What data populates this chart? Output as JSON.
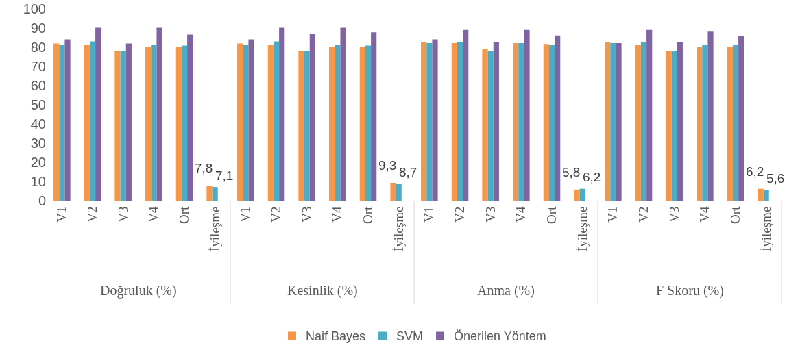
{
  "chart_data": {
    "type": "bar",
    "categories": [
      "V1",
      "V2",
      "V3",
      "V4",
      "Ort",
      "İyileşme",
      "V1",
      "V2",
      "V3",
      "V4",
      "Ort",
      "İyileşme",
      "V1",
      "V2",
      "V3",
      "V4",
      "Ort",
      "İyileşme",
      "V1",
      "V2",
      "V3",
      "V4",
      "Ort",
      "İyileşme"
    ],
    "annotations": [
      "Doğruluk (%)",
      "Kesinlik (%)",
      "Anma (%)",
      "F Skoru (%)"
    ],
    "series": [
      {
        "name": "Naif Bayes",
        "color": "#f79646",
        "values": [
          82,
          81.2,
          78.1,
          80.1,
          80.4,
          7.8,
          82,
          81.2,
          78.1,
          80.1,
          80.4,
          9.3,
          82.9,
          82.1,
          79.3,
          82.1,
          81.7,
          5.8,
          82.9,
          81.2,
          78.1,
          80.1,
          80.4,
          6.2
        ],
        "value_labels": [
          null,
          null,
          null,
          null,
          null,
          "7,8",
          null,
          null,
          null,
          null,
          null,
          "9,3",
          null,
          null,
          null,
          null,
          null,
          "5,8",
          null,
          null,
          null,
          null,
          null,
          "6,2"
        ]
      },
      {
        "name": "SVM",
        "color": "#4bacc6",
        "values": [
          81.2,
          83,
          78.1,
          81.2,
          80.9,
          7.1,
          81.2,
          83,
          78.1,
          81.2,
          80.9,
          8.7,
          82.1,
          82.9,
          78.1,
          82.1,
          81.2,
          6.2,
          82.1,
          82.9,
          78.1,
          81.2,
          81.2,
          5.6
        ],
        "value_labels": [
          null,
          null,
          null,
          null,
          null,
          "7,1",
          null,
          null,
          null,
          null,
          null,
          "8,7",
          null,
          null,
          null,
          null,
          null,
          "6,2",
          null,
          null,
          null,
          null,
          null,
          "5,6"
        ]
      },
      {
        "name": "Önerilen Yöntem",
        "color": "#8064a2",
        "values": [
          84.1,
          90.2,
          82,
          90.2,
          86.6,
          null,
          84.1,
          90.2,
          87,
          90.2,
          87.8,
          null,
          84.1,
          89,
          82.9,
          89,
          86.2,
          null,
          82.1,
          89,
          82.9,
          88.1,
          85.8,
          null
        ]
      }
    ],
    "ylim": [
      0,
      100
    ],
    "yticks": [
      0,
      10,
      20,
      30,
      40,
      50,
      60,
      70,
      80,
      90,
      100
    ],
    "grid": false,
    "legend": "bottom"
  }
}
